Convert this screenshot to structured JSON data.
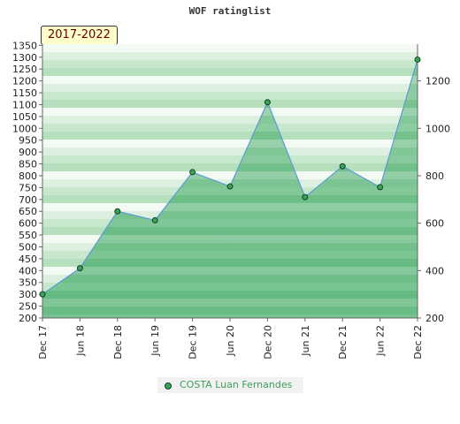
{
  "chart_data": {
    "type": "area",
    "title": "WOF ratinglist",
    "period_label": "2017-2022",
    "categories": [
      "Dec 17",
      "Jun 18",
      "Dec 18",
      "Jun 19",
      "Dec 19",
      "Jun 20",
      "Dec 20",
      "Jun 21",
      "Dec 21",
      "Jun 22",
      "Dec 22"
    ],
    "series": [
      {
        "name": "COSTA Luan Fernandes",
        "values": [
          300,
          410,
          650,
          612,
          815,
          755,
          1110,
          710,
          840,
          752,
          1290
        ]
      }
    ],
    "y_left_ticks": [
      200,
      250,
      300,
      350,
      400,
      450,
      500,
      550,
      600,
      650,
      700,
      750,
      800,
      850,
      900,
      950,
      1000,
      1050,
      1100,
      1150,
      1200,
      1250,
      1300,
      1350
    ],
    "y_right_ticks": [
      200,
      400,
      600,
      800,
      1000,
      1200
    ],
    "ylim": [
      200,
      1355
    ],
    "legend_position": "bottom-center",
    "colors": {
      "line": "#5b9bd5",
      "fill": "#4caf6e",
      "marker": "#3ca05a",
      "marker_edge": "#114422",
      "legend_text": "#3aa05a",
      "band_light": "#e8f5ea",
      "band_dark": "#c3e6c9"
    }
  }
}
